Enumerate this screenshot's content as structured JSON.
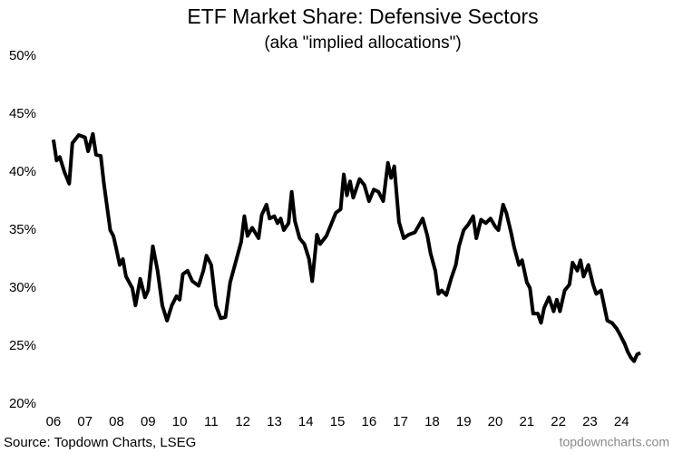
{
  "chart_data": {
    "type": "line",
    "title": "ETF Market Share: Defensive Sectors",
    "subtitle": "(aka \"implied allocations\")",
    "source": "Source: Topdown Charts, LSEG",
    "watermark": "topdowncharts.com",
    "color": "#000000",
    "x": [
      2006.0,
      2006.1,
      2006.2,
      2006.35,
      2006.5,
      2006.6,
      2006.8,
      2007.0,
      2007.1,
      2007.25,
      2007.35,
      2007.5,
      2007.6,
      2007.7,
      2007.8,
      2007.9,
      2008.0,
      2008.1,
      2008.2,
      2008.3,
      2008.5,
      2008.6,
      2008.75,
      2008.9,
      2009.0,
      2009.15,
      2009.3,
      2009.45,
      2009.6,
      2009.75,
      2009.9,
      2010.0,
      2010.1,
      2010.25,
      2010.4,
      2010.6,
      2010.75,
      2010.85,
      2011.0,
      2011.15,
      2011.3,
      2011.45,
      2011.6,
      2011.8,
      2011.95,
      2012.05,
      2012.15,
      2012.3,
      2012.5,
      2012.6,
      2012.75,
      2012.85,
      2013.0,
      2013.1,
      2013.2,
      2013.3,
      2013.45,
      2013.55,
      2013.65,
      2013.8,
      2013.95,
      2014.1,
      2014.2,
      2014.35,
      2014.45,
      2014.65,
      2014.8,
      2014.95,
      2015.1,
      2015.2,
      2015.3,
      2015.4,
      2015.5,
      2015.7,
      2015.85,
      2016.0,
      2016.15,
      2016.3,
      2016.45,
      2016.6,
      2016.7,
      2016.8,
      2016.95,
      2017.1,
      2017.25,
      2017.45,
      2017.6,
      2017.7,
      2017.85,
      2017.95,
      2018.1,
      2018.2,
      2018.3,
      2018.45,
      2018.6,
      2018.75,
      2018.85,
      2019.0,
      2019.15,
      2019.3,
      2019.4,
      2019.55,
      2019.7,
      2019.85,
      2020.0,
      2020.1,
      2020.25,
      2020.35,
      2020.5,
      2020.6,
      2020.75,
      2020.85,
      2021.0,
      2021.1,
      2021.2,
      2021.35,
      2021.45,
      2021.55,
      2021.7,
      2021.85,
      2021.95,
      2022.05,
      2022.2,
      2022.35,
      2022.45,
      2022.6,
      2022.7,
      2022.8,
      2022.95,
      2023.1,
      2023.2,
      2023.35,
      2023.45,
      2023.55,
      2023.7,
      2023.85,
      2023.95,
      2024.1,
      2024.2,
      2024.3,
      2024.4,
      2024.5,
      2024.6
    ],
    "values": [
      42.8,
      41.0,
      41.3,
      40.0,
      39.0,
      42.5,
      43.2,
      43.0,
      41.8,
      43.3,
      41.5,
      41.4,
      39.0,
      37.0,
      35.0,
      34.5,
      33.3,
      32.0,
      32.5,
      31.0,
      30.0,
      28.5,
      30.8,
      29.2,
      29.8,
      33.6,
      31.5,
      28.5,
      27.2,
      28.5,
      29.3,
      29.0,
      31.2,
      31.5,
      30.6,
      30.2,
      31.5,
      32.8,
      32.0,
      28.5,
      27.4,
      27.5,
      30.5,
      32.5,
      34.0,
      36.2,
      34.5,
      35.2,
      34.3,
      36.3,
      37.2,
      36.0,
      36.2,
      35.6,
      36.0,
      35.0,
      35.6,
      38.3,
      35.8,
      34.3,
      33.8,
      32.5,
      30.6,
      34.6,
      33.8,
      34.5,
      35.5,
      36.5,
      36.8,
      39.8,
      38.0,
      39.2,
      37.8,
      39.4,
      38.9,
      37.5,
      38.5,
      38.3,
      37.5,
      40.8,
      39.5,
      40.5,
      35.7,
      34.3,
      34.6,
      34.8,
      35.5,
      36.0,
      34.5,
      33.0,
      31.5,
      29.5,
      29.8,
      29.4,
      30.8,
      32.0,
      33.6,
      35.0,
      35.5,
      36.2,
      34.3,
      35.9,
      35.6,
      36.0,
      35.3,
      35.0,
      37.2,
      36.5,
      34.8,
      33.5,
      32.0,
      32.4,
      30.5,
      30.0,
      27.8,
      27.8,
      27.0,
      28.3,
      29.2,
      28.0,
      29.0,
      28.0,
      29.8,
      30.3,
      32.2,
      31.5,
      32.4,
      31.0,
      32.0,
      30.3,
      29.5,
      29.8,
      28.5,
      27.2,
      27.0,
      26.5,
      26.0,
      25.2,
      24.5,
      24.0,
      23.7,
      24.3,
      24.4
    ],
    "xlim": [
      2005.6,
      2025.0
    ],
    "xticks": [
      {
        "value": 2006,
        "label": "06"
      },
      {
        "value": 2007,
        "label": "07"
      },
      {
        "value": 2008,
        "label": "08"
      },
      {
        "value": 2009,
        "label": "09"
      },
      {
        "value": 2010,
        "label": "10"
      },
      {
        "value": 2011,
        "label": "11"
      },
      {
        "value": 2012,
        "label": "12"
      },
      {
        "value": 2013,
        "label": "13"
      },
      {
        "value": 2014,
        "label": "14"
      },
      {
        "value": 2015,
        "label": "15"
      },
      {
        "value": 2016,
        "label": "16"
      },
      {
        "value": 2017,
        "label": "17"
      },
      {
        "value": 2018,
        "label": "18"
      },
      {
        "value": 2019,
        "label": "19"
      },
      {
        "value": 2020,
        "label": "20"
      },
      {
        "value": 2021,
        "label": "21"
      },
      {
        "value": 2022,
        "label": "22"
      },
      {
        "value": 2023,
        "label": "23"
      },
      {
        "value": 2024,
        "label": "24"
      }
    ],
    "ylim": [
      20,
      50
    ],
    "yticks": [
      {
        "value": 20,
        "label": "20%"
      },
      {
        "value": 25,
        "label": "25%"
      },
      {
        "value": 30,
        "label": "30%"
      },
      {
        "value": 35,
        "label": "35%"
      },
      {
        "value": 40,
        "label": "40%"
      },
      {
        "value": 45,
        "label": "45%"
      },
      {
        "value": 50,
        "label": "50%"
      }
    ],
    "grid": false
  }
}
